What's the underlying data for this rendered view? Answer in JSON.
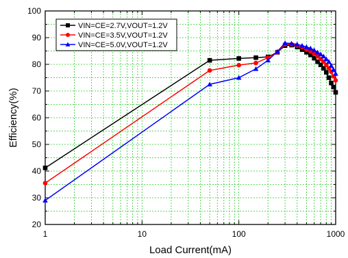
{
  "chart_data": {
    "type": "line",
    "x_scale": "log",
    "xlim": [
      1,
      1000
    ],
    "ylim": [
      20,
      100
    ],
    "xlabel": "Load Current(mA)",
    "ylabel": "Efficiency(%)",
    "x_ticks": [
      "1",
      "10",
      "100",
      "1000"
    ],
    "y_ticks": [
      "20",
      "30",
      "40",
      "50",
      "60",
      "70",
      "80",
      "90",
      "100"
    ],
    "grid": true,
    "grid_color": "#22cc22",
    "legend_position": "top-left",
    "series": [
      {
        "name": "VIN=CE=2.7V,VOUT=1.2V",
        "color": "#000000",
        "marker": "square",
        "x": [
          1,
          50,
          100,
          150,
          200,
          250,
          300,
          350,
          400,
          450,
          500,
          550,
          600,
          650,
          700,
          750,
          800,
          850,
          900,
          950,
          1000
        ],
        "y": [
          41.2,
          81.5,
          82.2,
          82.5,
          82.8,
          84.5,
          87.0,
          87.2,
          86.5,
          85.5,
          84.5,
          83.5,
          82.3,
          81.0,
          79.8,
          78.5,
          77.0,
          75.0,
          73.0,
          71.5,
          69.5
        ]
      },
      {
        "name": "VIN=CE=3.5V,VOUT=1.2V",
        "color": "#ff0000",
        "marker": "circle",
        "x": [
          1,
          50,
          100,
          150,
          200,
          250,
          300,
          350,
          400,
          450,
          500,
          550,
          600,
          650,
          700,
          750,
          800,
          850,
          900,
          950,
          1000
        ],
        "y": [
          35.5,
          77.7,
          79.7,
          80.5,
          82.5,
          84.5,
          87.5,
          87.5,
          87.0,
          86.5,
          85.5,
          84.8,
          84.0,
          83.0,
          82.0,
          81.0,
          79.8,
          78.5,
          77.2,
          75.5,
          74.0
        ]
      },
      {
        "name": "VIN=CE=5.0V,VOUT=1.2V",
        "color": "#0000ff",
        "marker": "triangle",
        "x": [
          1,
          50,
          100,
          150,
          200,
          250,
          300,
          350,
          400,
          450,
          500,
          550,
          600,
          650,
          700,
          750,
          800,
          850,
          900,
          950,
          1000
        ],
        "y": [
          29.0,
          72.5,
          75.0,
          78.3,
          81.5,
          84.8,
          88.0,
          87.8,
          87.5,
          87.0,
          86.5,
          86.0,
          85.3,
          84.5,
          83.8,
          83.0,
          82.0,
          81.0,
          79.5,
          78.0,
          76.5
        ]
      }
    ]
  }
}
